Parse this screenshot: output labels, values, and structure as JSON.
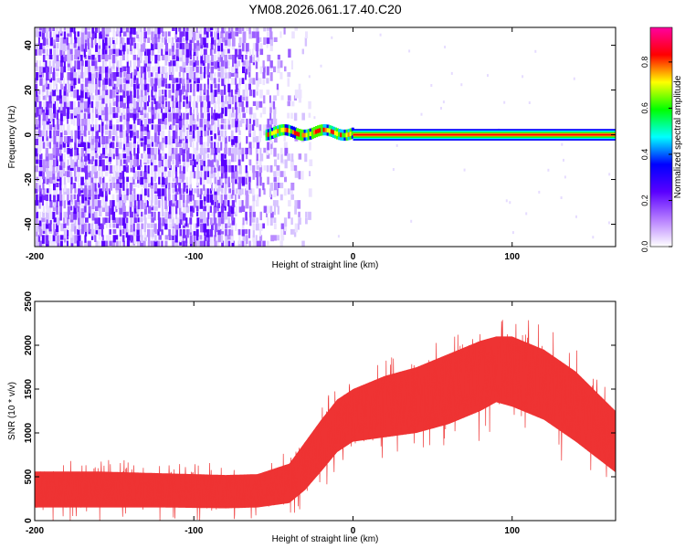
{
  "title": "YM08.2026.061.17.40.C20",
  "chart_data": [
    {
      "type": "heatmap",
      "title": "YM08.2026.061.17.40.C20",
      "xlabel": "Height of straight line (km)",
      "ylabel": "Frequency (Hz)",
      "xlim": [
        -200,
        165
      ],
      "ylim": [
        -50,
        48
      ],
      "xticks": [
        "-200",
        "-100",
        "0",
        "100"
      ],
      "yticks": [
        "40",
        "20",
        "0",
        "-20",
        "-40"
      ],
      "colorbar": {
        "label": "Normalized spectral amplitude",
        "range": [
          0,
          0.95
        ],
        "ticks": [
          "0.0",
          "0.2",
          "0.4",
          "0.6",
          "0.8"
        ],
        "colors": [
          "#ffffff",
          "#b57cff",
          "#5a00ff",
          "#0000ff",
          "#00ffff",
          "#00ff00",
          "#ffff00",
          "#ff0000",
          "#ff00a0"
        ]
      },
      "description_regions": [
        {
          "x": [
            -200,
            -40
          ],
          "y": [
            -50,
            48
          ],
          "amplitude": 0.15
        },
        {
          "x": [
            -55,
            0
          ],
          "y": [
            -2,
            4
          ],
          "amplitude": 0.4
        },
        {
          "x": [
            0,
            165
          ],
          "y": [
            -1,
            1
          ],
          "amplitude": 0.9
        }
      ]
    },
    {
      "type": "area",
      "xlabel": "Height of straight line (km)",
      "ylabel": "SNR (10 * v/v)",
      "xlim": [
        -200,
        165
      ],
      "ylim": [
        0,
        2500
      ],
      "xticks": [
        "-200",
        "-100",
        "0",
        "100"
      ],
      "yticks": [
        "0",
        "500",
        "1000",
        "1500",
        "2000",
        "2500"
      ],
      "color": "#ee3333",
      "envelope": {
        "x": [
          -200,
          -160,
          -120,
          -80,
          -60,
          -40,
          -30,
          -20,
          -10,
          0,
          20,
          40,
          60,
          80,
          90,
          100,
          120,
          140,
          165
        ],
        "upper": [
          560,
          560,
          540,
          520,
          530,
          650,
          900,
          1150,
          1380,
          1500,
          1650,
          1750,
          1900,
          2050,
          2100,
          2100,
          1950,
          1700,
          1250
        ],
        "lower": [
          150,
          150,
          150,
          140,
          150,
          200,
          350,
          560,
          780,
          900,
          950,
          1000,
          1100,
          1250,
          1350,
          1300,
          1150,
          900,
          550
        ]
      }
    }
  ]
}
